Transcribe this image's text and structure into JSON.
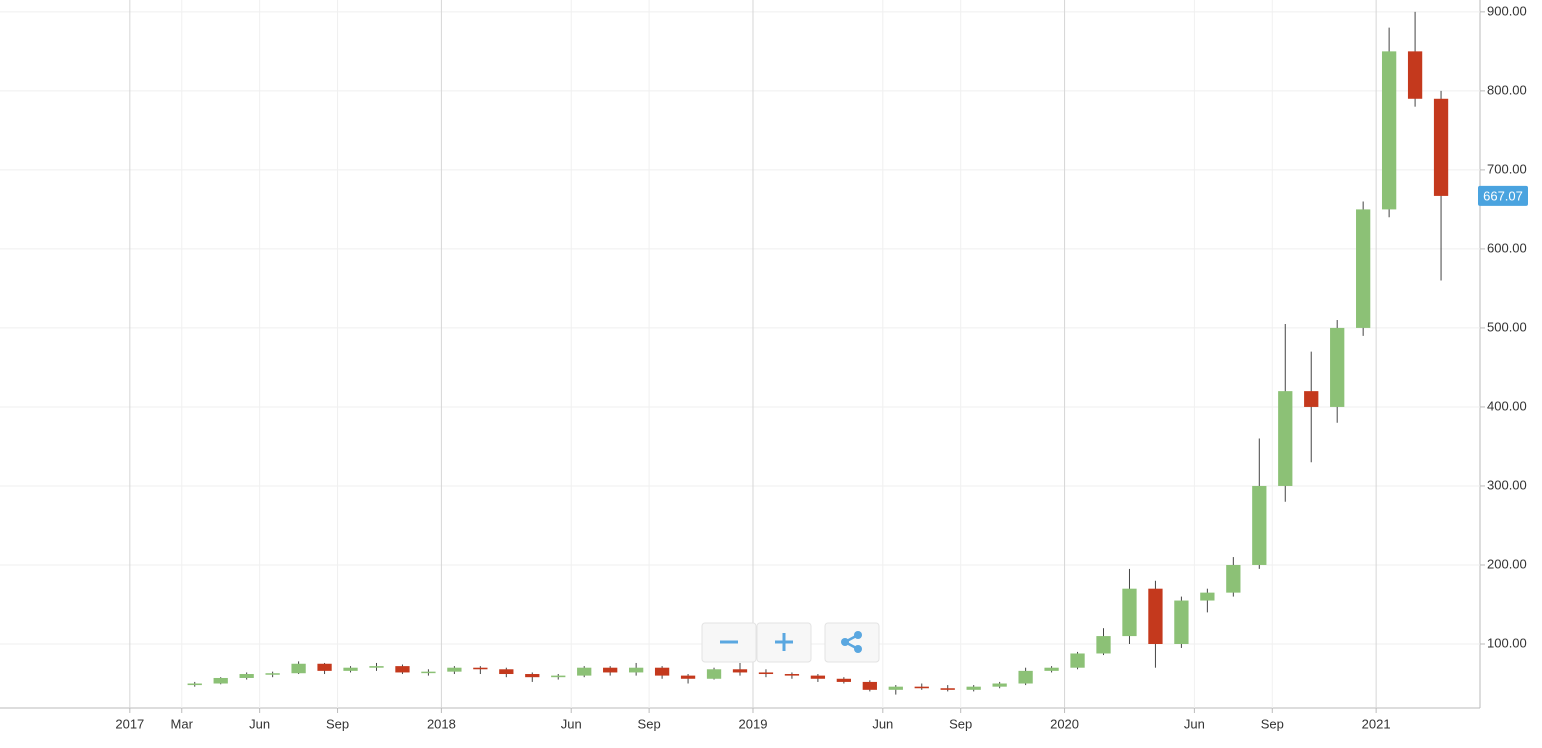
{
  "chart_data": {
    "type": "candlestick",
    "x": [
      "2017-03",
      "2017-04",
      "2017-05",
      "2017-06",
      "2017-07",
      "2017-08",
      "2017-09",
      "2017-10",
      "2017-11",
      "2017-12",
      "2018-01",
      "2018-02",
      "2018-03",
      "2018-04",
      "2018-05",
      "2018-06",
      "2018-07",
      "2018-08",
      "2018-09",
      "2018-10",
      "2018-11",
      "2018-12",
      "2019-01",
      "2019-02",
      "2019-03",
      "2019-04",
      "2019-05",
      "2019-06",
      "2019-07",
      "2019-08",
      "2019-09",
      "2019-10",
      "2019-11",
      "2019-12",
      "2020-01",
      "2020-02",
      "2020-03",
      "2020-04",
      "2020-05",
      "2020-06",
      "2020-07",
      "2020-08",
      "2020-09",
      "2020-10",
      "2020-11",
      "2020-12",
      "2021-01",
      "2021-02",
      "2021-03"
    ],
    "open": [
      48,
      50,
      57,
      62,
      63,
      75,
      66,
      70,
      72,
      64,
      65,
      70,
      68,
      62,
      58,
      60,
      70,
      64,
      70,
      60,
      56,
      68,
      64,
      62,
      60,
      56,
      52,
      42,
      46,
      44,
      42,
      46,
      50,
      66,
      70,
      88,
      110,
      170,
      100,
      155,
      165,
      200,
      300,
      420,
      400,
      500,
      650,
      850,
      790
    ],
    "high": [
      52,
      58,
      64,
      65,
      78,
      76,
      72,
      76,
      74,
      68,
      72,
      72,
      70,
      64,
      62,
      72,
      72,
      76,
      72,
      62,
      70,
      76,
      68,
      64,
      62,
      58,
      54,
      48,
      50,
      48,
      48,
      52,
      70,
      72,
      90,
      120,
      195,
      180,
      160,
      170,
      210,
      360,
      505,
      470,
      510,
      660,
      880,
      900,
      800
    ],
    "low": [
      46,
      49,
      55,
      58,
      62,
      62,
      64,
      66,
      62,
      60,
      62,
      62,
      58,
      52,
      55,
      58,
      60,
      60,
      56,
      50,
      55,
      60,
      58,
      56,
      52,
      50,
      40,
      36,
      42,
      40,
      40,
      44,
      48,
      64,
      68,
      86,
      100,
      70,
      95,
      140,
      160,
      195,
      280,
      330,
      380,
      490,
      640,
      780,
      560
    ],
    "close": [
      50,
      57,
      62,
      63,
      75,
      66,
      70,
      72,
      64,
      65,
      70,
      68,
      62,
      58,
      60,
      70,
      64,
      70,
      60,
      56,
      68,
      64,
      62,
      60,
      56,
      52,
      42,
      46,
      44,
      42,
      46,
      50,
      66,
      70,
      88,
      110,
      170,
      100,
      155,
      165,
      200,
      300,
      420,
      400,
      500,
      650,
      850,
      790,
      667.07
    ],
    "up_color": "#8cc176",
    "down_color": "#c4391d",
    "wick_color": "#444444",
    "last_price_color": "#4aa3df",
    "xlim": [
      "2016-08",
      "2021-05"
    ],
    "xticks": [
      {
        "value": "2017-01",
        "label": "2017"
      },
      {
        "value": "2017-03",
        "label": "Mar"
      },
      {
        "value": "2017-06",
        "label": "Jun"
      },
      {
        "value": "2017-09",
        "label": "Sep"
      },
      {
        "value": "2018-01",
        "label": "2018"
      },
      {
        "value": "2018-06",
        "label": "Jun"
      },
      {
        "value": "2018-09",
        "label": "Sep"
      },
      {
        "value": "2019-01",
        "label": "2019"
      },
      {
        "value": "2019-06",
        "label": "Jun"
      },
      {
        "value": "2019-09",
        "label": "Sep"
      },
      {
        "value": "2020-01",
        "label": "2020"
      },
      {
        "value": "2020-06",
        "label": "Jun"
      },
      {
        "value": "2020-09",
        "label": "Sep"
      },
      {
        "value": "2021-01",
        "label": "2021"
      }
    ],
    "ylim": [
      19,
      915
    ],
    "yticks": [
      {
        "value": 100,
        "label": "100.00"
      },
      {
        "value": 200,
        "label": "200.00"
      },
      {
        "value": 300,
        "label": "300.00"
      },
      {
        "value": 400,
        "label": "400.00"
      },
      {
        "value": 500,
        "label": "500.00"
      },
      {
        "value": 600,
        "label": "600.00"
      },
      {
        "value": 700,
        "label": "700.00"
      },
      {
        "value": 800,
        "label": "800.00"
      },
      {
        "value": 900,
        "label": "900.00"
      }
    ],
    "grid": true
  }
}
